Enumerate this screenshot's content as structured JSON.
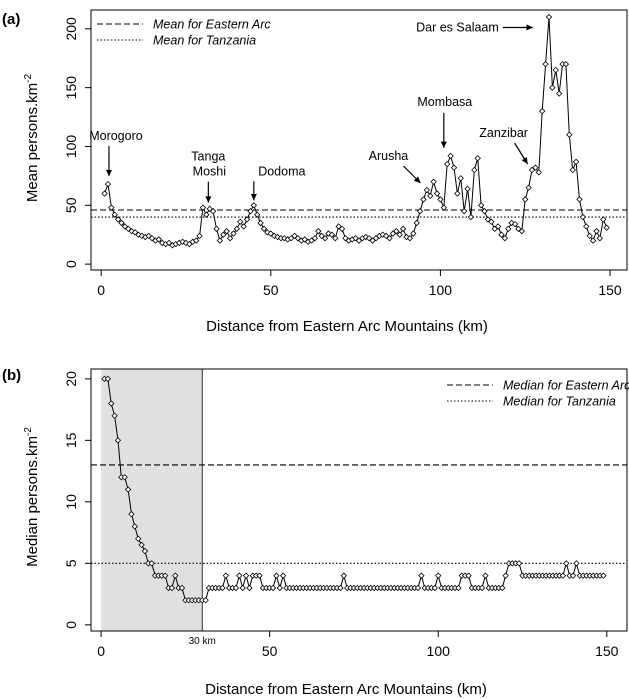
{
  "panels": [
    {
      "label": "(a)"
    },
    {
      "label": "(b)"
    }
  ],
  "chart_data": [
    {
      "type": "line",
      "panel": "(a)",
      "xlabel": "Distance from Eastern Arc Mountains (km)",
      "ylabel": "Mean persons.km",
      "ylabel_superscript": "-2",
      "xlim": [
        -3,
        155
      ],
      "ylim": [
        -5,
        216
      ],
      "xticks": [
        0,
        50,
        100,
        150
      ],
      "yticks": [
        0,
        50,
        100,
        150,
        200
      ],
      "grid": false,
      "legend_position": "top-left",
      "reference_lines": [
        {
          "name": "Mean for Eastern Arc",
          "value": 46,
          "style": "dashed"
        },
        {
          "name": "Mean for Tanzania",
          "value": 40,
          "style": "dotted"
        }
      ],
      "series": [
        {
          "x": [
            1,
            2,
            3,
            4,
            5,
            6,
            7,
            8,
            9,
            10,
            11,
            12,
            13,
            14,
            15,
            16,
            17,
            18,
            19,
            20,
            21,
            22,
            23,
            24,
            25,
            26,
            27,
            28,
            29,
            30,
            31,
            32,
            33,
            34,
            35,
            36,
            37,
            38,
            39,
            40,
            41,
            42,
            43,
            44,
            45,
            46,
            47,
            48,
            49,
            50,
            51,
            52,
            53,
            54,
            55,
            56,
            57,
            58,
            59,
            60,
            61,
            62,
            63,
            64,
            65,
            66,
            67,
            68,
            69,
            70,
            71,
            72,
            73,
            74,
            75,
            76,
            77,
            78,
            79,
            80,
            81,
            82,
            83,
            84,
            85,
            86,
            87,
            88,
            89,
            90,
            91,
            92,
            93,
            94,
            95,
            96,
            97,
            98,
            99,
            100,
            101,
            102,
            103,
            104,
            105,
            106,
            107,
            108,
            109,
            110,
            111,
            112,
            113,
            114,
            115,
            116,
            117,
            118,
            119,
            120,
            121,
            122,
            123,
            124,
            125,
            126,
            127,
            128,
            129,
            130,
            131,
            132,
            133,
            134,
            135,
            136,
            137,
            138,
            139,
            140,
            141,
            142,
            143,
            144,
            145,
            146,
            147,
            148,
            149
          ],
          "values": [
            60,
            68,
            48,
            42,
            38,
            35,
            32,
            30,
            28,
            27,
            25,
            24,
            23,
            24,
            22,
            20,
            21,
            18,
            17,
            18,
            16,
            17,
            18,
            19,
            18,
            17,
            19,
            20,
            24,
            48,
            42,
            47,
            45,
            30,
            20,
            25,
            28,
            22,
            26,
            30,
            36,
            32,
            38,
            45,
            50,
            42,
            35,
            30,
            27,
            26,
            24,
            23,
            22,
            22,
            21,
            22,
            24,
            22,
            20,
            21,
            19,
            20,
            22,
            28,
            24,
            22,
            26,
            25,
            22,
            32,
            30,
            22,
            20,
            21,
            22,
            20,
            22,
            23,
            22,
            20,
            22,
            24,
            25,
            24,
            22,
            26,
            28,
            25,
            30,
            23,
            22,
            26,
            35,
            45,
            55,
            63,
            58,
            70,
            60,
            55,
            48,
            85,
            92,
            82,
            60,
            73,
            45,
            64,
            40,
            80,
            90,
            50,
            45,
            38,
            36,
            30,
            32,
            25,
            22,
            30,
            35,
            34,
            30,
            28,
            55,
            65,
            80,
            82,
            78,
            130,
            170,
            210,
            150,
            165,
            145,
            170,
            170,
            110,
            80,
            87,
            55,
            40,
            32,
            24,
            20,
            28,
            22,
            38,
            31
          ]
        }
      ],
      "annotations": [
        {
          "text": "Morogoro",
          "x": 2,
          "y": 68
        },
        {
          "text": "Tanga",
          "x": 31,
          "y": 48
        },
        {
          "text": "Moshi",
          "x": 31,
          "y": 48
        },
        {
          "text": "Dodoma",
          "x": 45,
          "y": 50
        },
        {
          "text": "Arusha",
          "x": 95,
          "y": 63
        },
        {
          "text": "Mombasa",
          "x": 101,
          "y": 92
        },
        {
          "text": "Zanzibar",
          "x": 126,
          "y": 80
        },
        {
          "text": "Dar es Salaam",
          "x": 129,
          "y": 202
        }
      ]
    },
    {
      "type": "line",
      "panel": "(b)",
      "xlabel": "Distance from Eastern Arc Mountains (km)",
      "ylabel": "Median persons.km",
      "ylabel_superscript": "-2",
      "xlim": [
        -3,
        156
      ],
      "ylim": [
        -0.5,
        20.8
      ],
      "xticks": [
        0,
        50,
        100,
        150
      ],
      "yticks": [
        0,
        5,
        10,
        15,
        20
      ],
      "grid": false,
      "legend_position": "top-right",
      "shaded_region": {
        "from": 0,
        "to": 30,
        "label": "30 km"
      },
      "reference_lines": [
        {
          "name": "Median for Eastern Arc",
          "value": 13,
          "style": "dashed"
        },
        {
          "name": "Median for Tanzania",
          "value": 5,
          "style": "dotted"
        }
      ],
      "series": [
        {
          "x": [
            1,
            2,
            3,
            4,
            5,
            6,
            7,
            8,
            9,
            10,
            11,
            12,
            13,
            14,
            15,
            16,
            17,
            18,
            19,
            20,
            21,
            22,
            23,
            24,
            25,
            26,
            27,
            28,
            29,
            30,
            31,
            32,
            33,
            34,
            35,
            36,
            37,
            38,
            39,
            40,
            41,
            42,
            43,
            44,
            45,
            46,
            47,
            48,
            49,
            50,
            51,
            52,
            53,
            54,
            55,
            56,
            57,
            58,
            59,
            60,
            61,
            62,
            63,
            64,
            65,
            66,
            67,
            68,
            69,
            70,
            71,
            72,
            73,
            74,
            75,
            76,
            77,
            78,
            79,
            80,
            81,
            82,
            83,
            84,
            85,
            86,
            87,
            88,
            89,
            90,
            91,
            92,
            93,
            94,
            95,
            96,
            97,
            98,
            99,
            100,
            101,
            102,
            103,
            104,
            105,
            106,
            107,
            108,
            109,
            110,
            111,
            112,
            113,
            114,
            115,
            116,
            117,
            118,
            119,
            120,
            121,
            122,
            123,
            124,
            125,
            126,
            127,
            128,
            129,
            130,
            131,
            132,
            133,
            134,
            135,
            136,
            137,
            138,
            139,
            140,
            141,
            142,
            143,
            144,
            145,
            146,
            147,
            148,
            149
          ],
          "values": [
            20,
            20,
            18,
            17,
            15,
            12,
            12,
            11,
            9,
            8,
            7,
            6.5,
            6,
            5,
            5,
            4,
            4,
            4,
            4,
            3,
            3,
            4,
            3,
            3,
            2,
            2,
            2,
            2,
            2,
            2,
            2,
            3,
            3,
            3,
            3,
            3,
            4,
            3,
            3,
            3,
            4,
            3,
            4,
            3,
            4,
            4,
            4,
            3,
            3,
            3,
            3,
            4,
            3,
            4,
            3,
            3,
            3,
            3,
            3,
            3,
            3,
            3,
            3,
            3,
            3,
            3,
            3,
            3,
            3,
            3,
            3,
            4,
            3,
            3,
            3,
            3,
            3,
            3,
            3,
            3,
            3,
            3,
            3,
            3,
            3,
            3,
            3,
            3,
            3,
            3,
            3,
            3,
            3,
            3,
            4,
            3,
            3,
            3,
            3,
            4,
            3,
            3,
            3,
            3,
            3,
            3,
            4,
            4,
            4,
            3,
            3,
            3,
            3,
            4,
            3,
            3,
            3,
            3,
            3,
            4,
            5,
            5,
            5,
            5,
            4,
            4,
            4,
            4,
            4,
            4,
            4,
            4,
            4,
            4,
            4,
            4,
            4,
            5,
            4,
            4,
            5,
            4,
            4,
            4,
            4,
            4,
            4,
            4,
            4
          ]
        }
      ],
      "annotations": []
    }
  ]
}
